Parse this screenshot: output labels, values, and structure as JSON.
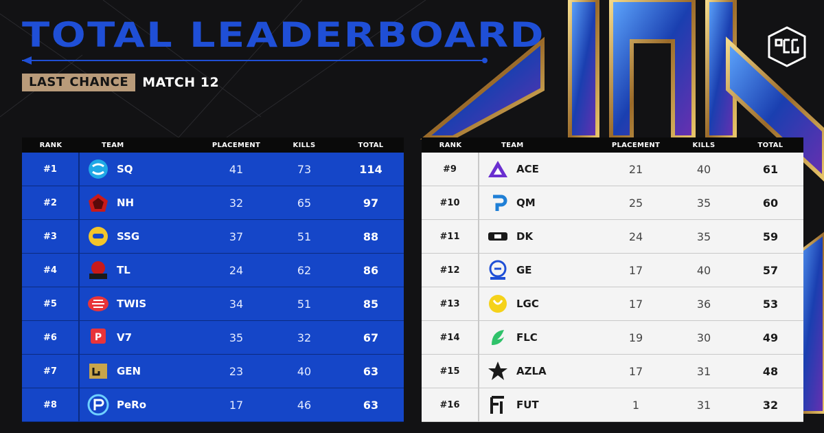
{
  "header": {
    "title": "TOTAL LEADERBOARD",
    "badge": "LAST CHANCE",
    "match": "MATCH 12"
  },
  "columns": {
    "rank": "RANK",
    "team": "TEAM",
    "placement": "PLACEMENT",
    "kills": "KILLS",
    "total": "TOTAL"
  },
  "colors": {
    "title": "#1f4fd6",
    "left_row": "#1546c8",
    "right_row": "#f4f4f4",
    "badge": "#b99b7a"
  },
  "left_rows": [
    {
      "rank": "#1",
      "team": "SQ",
      "placement": "41",
      "kills": "73",
      "total": "114",
      "icon": "sq-logo-icon"
    },
    {
      "rank": "#2",
      "team": "NH",
      "placement": "32",
      "kills": "65",
      "total": "97",
      "icon": "nh-logo-icon"
    },
    {
      "rank": "#3",
      "team": "SSG",
      "placement": "37",
      "kills": "51",
      "total": "88",
      "icon": "ssg-logo-icon"
    },
    {
      "rank": "#4",
      "team": "TL",
      "placement": "24",
      "kills": "62",
      "total": "86",
      "icon": "tl-logo-icon"
    },
    {
      "rank": "#5",
      "team": "TWIS",
      "placement": "34",
      "kills": "51",
      "total": "85",
      "icon": "twis-logo-icon"
    },
    {
      "rank": "#6",
      "team": "V7",
      "placement": "35",
      "kills": "32",
      "total": "67",
      "icon": "v7-logo-icon"
    },
    {
      "rank": "#7",
      "team": "GEN",
      "placement": "23",
      "kills": "40",
      "total": "63",
      "icon": "gen-logo-icon"
    },
    {
      "rank": "#8",
      "team": "PeRo",
      "placement": "17",
      "kills": "46",
      "total": "63",
      "icon": "pero-logo-icon"
    }
  ],
  "right_rows": [
    {
      "rank": "#9",
      "team": "ACE",
      "placement": "21",
      "kills": "40",
      "total": "61",
      "icon": "ace-logo-icon"
    },
    {
      "rank": "#10",
      "team": "QM",
      "placement": "25",
      "kills": "35",
      "total": "60",
      "icon": "qm-logo-icon"
    },
    {
      "rank": "#11",
      "team": "DK",
      "placement": "24",
      "kills": "35",
      "total": "59",
      "icon": "dk-logo-icon"
    },
    {
      "rank": "#12",
      "team": "GE",
      "placement": "17",
      "kills": "40",
      "total": "57",
      "icon": "ge-logo-icon"
    },
    {
      "rank": "#13",
      "team": "LGC",
      "placement": "17",
      "kills": "36",
      "total": "53",
      "icon": "lgc-logo-icon"
    },
    {
      "rank": "#14",
      "team": "FLC",
      "placement": "19",
      "kills": "30",
      "total": "49",
      "icon": "flc-logo-icon"
    },
    {
      "rank": "#15",
      "team": "AZLA",
      "placement": "17",
      "kills": "31",
      "total": "48",
      "icon": "azla-logo-icon"
    },
    {
      "rank": "#16",
      "team": "FUT",
      "placement": "1",
      "kills": "31",
      "total": "32",
      "icon": "fut-logo-icon"
    }
  ]
}
